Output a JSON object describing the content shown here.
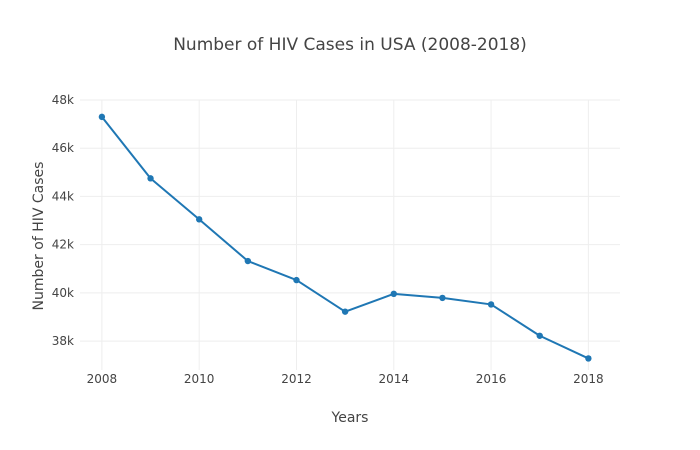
{
  "chart_data": {
    "type": "line",
    "title": "Number of HIV Cases in USA (2008-2018)",
    "xlabel": "Years",
    "ylabel": "Number of HIV Cases",
    "x": [
      2008,
      2009,
      2010,
      2011,
      2012,
      2013,
      2014,
      2015,
      2016,
      2017,
      2018
    ],
    "series": [
      {
        "values": [
          47300,
          44750,
          43050,
          41320,
          40530,
          39220,
          39960,
          39790,
          39520,
          38220,
          37280
        ]
      }
    ],
    "xlim": [
      2007.55,
      2018.65
    ],
    "ylim": [
      36800,
      48000
    ],
    "xticks": [
      2008,
      2010,
      2012,
      2014,
      2016,
      2018
    ],
    "xtick_labels": [
      "2008",
      "2010",
      "2012",
      "2014",
      "2016",
      "2018"
    ],
    "yticks": [
      38000,
      40000,
      42000,
      44000,
      46000,
      48000
    ],
    "ytick_labels": [
      "38k",
      "40k",
      "42k",
      "44k",
      "46k",
      "48k"
    ],
    "grid": true,
    "legend": "none",
    "colors": {
      "line": "#1f77b4",
      "grid": "#eeeeee",
      "text": "#444444"
    }
  }
}
